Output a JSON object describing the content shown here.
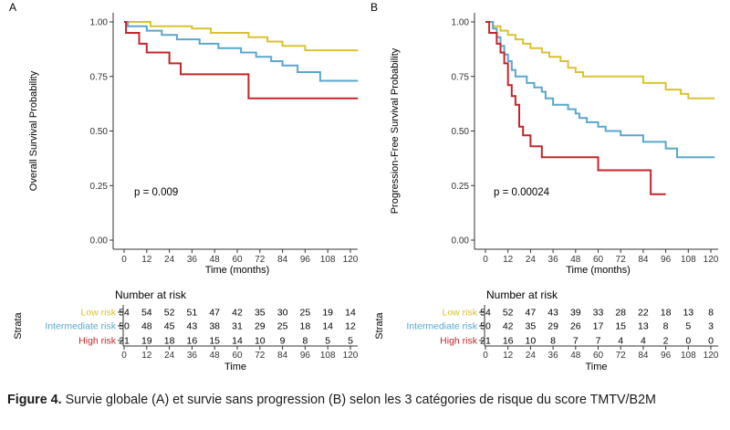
{
  "colors": {
    "low": "#d9c232",
    "intermediate": "#5aa7cc",
    "high": "#c4262b",
    "axis": "#333333",
    "grid": "#ebebeb"
  },
  "chart_data": [
    {
      "type": "line",
      "subtype": "kaplan-meier step",
      "panel_label": "A",
      "ylabel": "Overall Survival Probability",
      "xlabel": "Time (months)",
      "xlim": [
        0,
        120
      ],
      "ylim": [
        0,
        1
      ],
      "xticks": [
        0,
        12,
        24,
        36,
        48,
        60,
        72,
        84,
        96,
        108,
        120
      ],
      "yticks": [
        0,
        0.25,
        0.5,
        0.75,
        1
      ],
      "ytick_labels": [
        "0.00",
        "0.25",
        "0.50",
        "0.75",
        "1.00"
      ],
      "grid": false,
      "pvalue": "p = 0.009",
      "series": [
        {
          "name": "Low risk",
          "color_key": "low",
          "points": [
            [
              0,
              1
            ],
            [
              14,
              1
            ],
            [
              14,
              0.98
            ],
            [
              36,
              0.98
            ],
            [
              36,
              0.97
            ],
            [
              46,
              0.97
            ],
            [
              46,
              0.95
            ],
            [
              66,
              0.95
            ],
            [
              66,
              0.93
            ],
            [
              76,
              0.93
            ],
            [
              76,
              0.91
            ],
            [
              84,
              0.91
            ],
            [
              84,
              0.89
            ],
            [
              96,
              0.89
            ],
            [
              96,
              0.87
            ],
            [
              124,
              0.87
            ]
          ]
        },
        {
          "name": "Intermediate risk",
          "color_key": "intermediate",
          "points": [
            [
              0,
              1
            ],
            [
              2,
              1
            ],
            [
              2,
              0.98
            ],
            [
              12,
              0.98
            ],
            [
              12,
              0.96
            ],
            [
              20,
              0.96
            ],
            [
              20,
              0.94
            ],
            [
              28,
              0.94
            ],
            [
              28,
              0.92
            ],
            [
              40,
              0.92
            ],
            [
              40,
              0.9
            ],
            [
              50,
              0.9
            ],
            [
              50,
              0.88
            ],
            [
              62,
              0.88
            ],
            [
              62,
              0.86
            ],
            [
              70,
              0.86
            ],
            [
              70,
              0.84
            ],
            [
              78,
              0.84
            ],
            [
              78,
              0.82
            ],
            [
              84,
              0.82
            ],
            [
              84,
              0.8
            ],
            [
              92,
              0.8
            ],
            [
              92,
              0.77
            ],
            [
              104,
              0.77
            ],
            [
              104,
              0.73
            ],
            [
              124,
              0.73
            ]
          ]
        },
        {
          "name": "High risk",
          "color_key": "high",
          "points": [
            [
              0,
              1
            ],
            [
              1,
              1
            ],
            [
              1,
              0.95
            ],
            [
              8,
              0.95
            ],
            [
              8,
              0.9
            ],
            [
              12,
              0.9
            ],
            [
              12,
              0.86
            ],
            [
              24,
              0.86
            ],
            [
              24,
              0.81
            ],
            [
              30,
              0.81
            ],
            [
              30,
              0.76
            ],
            [
              66,
              0.76
            ],
            [
              66,
              0.65
            ],
            [
              124,
              0.65
            ]
          ]
        }
      ],
      "risk_table": {
        "title": "Number at risk",
        "strata_label": "Strata",
        "xlabel": "Time",
        "times": [
          0,
          12,
          24,
          36,
          48,
          60,
          72,
          84,
          96,
          108,
          120
        ],
        "rows": [
          {
            "name": "Low risk",
            "color_key": "low",
            "values": [
              "54",
              "54",
              "52",
              "51",
              "47",
              "42",
              "35",
              "30",
              "25",
              "19",
              "14"
            ]
          },
          {
            "name": "Intermediate risk",
            "color_key": "intermediate",
            "values": [
              "50",
              "48",
              "45",
              "43",
              "38",
              "31",
              "29",
              "25",
              "18",
              "14",
              "12"
            ]
          },
          {
            "name": "High risk",
            "color_key": "high",
            "values": [
              "21",
              "19",
              "18",
              "16",
              "15",
              "14",
              "10",
              "9",
              "8",
              "5",
              "5"
            ]
          }
        ]
      }
    },
    {
      "type": "line",
      "subtype": "kaplan-meier step",
      "panel_label": "B",
      "ylabel": "Progression-Free Survival Probability",
      "xlabel": "Time (months)",
      "xlim": [
        0,
        120
      ],
      "ylim": [
        0,
        1
      ],
      "xticks": [
        0,
        12,
        24,
        36,
        48,
        60,
        72,
        84,
        96,
        108,
        120
      ],
      "yticks": [
        0,
        0.25,
        0.5,
        0.75,
        1
      ],
      "ytick_labels": [
        "0.00",
        "0.25",
        "0.50",
        "0.75",
        "1.00"
      ],
      "grid": false,
      "pvalue": "p = 0.00024",
      "series": [
        {
          "name": "Low risk",
          "color_key": "low",
          "points": [
            [
              0,
              1
            ],
            [
              4,
              1
            ],
            [
              4,
              0.98
            ],
            [
              8,
              0.98
            ],
            [
              8,
              0.96
            ],
            [
              12,
              0.96
            ],
            [
              12,
              0.94
            ],
            [
              16,
              0.94
            ],
            [
              16,
              0.92
            ],
            [
              20,
              0.92
            ],
            [
              20,
              0.9
            ],
            [
              24,
              0.9
            ],
            [
              24,
              0.88
            ],
            [
              30,
              0.88
            ],
            [
              30,
              0.86
            ],
            [
              34,
              0.86
            ],
            [
              34,
              0.84
            ],
            [
              40,
              0.84
            ],
            [
              40,
              0.82
            ],
            [
              44,
              0.82
            ],
            [
              44,
              0.79
            ],
            [
              48,
              0.79
            ],
            [
              48,
              0.77
            ],
            [
              52,
              0.77
            ],
            [
              52,
              0.75
            ],
            [
              84,
              0.75
            ],
            [
              84,
              0.72
            ],
            [
              96,
              0.72
            ],
            [
              96,
              0.69
            ],
            [
              104,
              0.69
            ],
            [
              104,
              0.67
            ],
            [
              108,
              0.67
            ],
            [
              108,
              0.65
            ],
            [
              122,
              0.65
            ]
          ]
        },
        {
          "name": "Intermediate risk",
          "color_key": "intermediate",
          "points": [
            [
              0,
              1
            ],
            [
              4,
              1
            ],
            [
              4,
              0.97
            ],
            [
              6,
              0.97
            ],
            [
              6,
              0.93
            ],
            [
              8,
              0.93
            ],
            [
              8,
              0.89
            ],
            [
              10,
              0.89
            ],
            [
              10,
              0.85
            ],
            [
              12,
              0.85
            ],
            [
              12,
              0.82
            ],
            [
              14,
              0.82
            ],
            [
              14,
              0.78
            ],
            [
              16,
              0.78
            ],
            [
              16,
              0.75
            ],
            [
              22,
              0.75
            ],
            [
              22,
              0.72
            ],
            [
              26,
              0.72
            ],
            [
              26,
              0.7
            ],
            [
              30,
              0.7
            ],
            [
              30,
              0.68
            ],
            [
              32,
              0.68
            ],
            [
              32,
              0.65
            ],
            [
              36,
              0.65
            ],
            [
              36,
              0.62
            ],
            [
              44,
              0.62
            ],
            [
              44,
              0.6
            ],
            [
              48,
              0.6
            ],
            [
              48,
              0.58
            ],
            [
              50,
              0.58
            ],
            [
              50,
              0.56
            ],
            [
              54,
              0.56
            ],
            [
              54,
              0.54
            ],
            [
              60,
              0.54
            ],
            [
              60,
              0.52
            ],
            [
              64,
              0.52
            ],
            [
              64,
              0.5
            ],
            [
              72,
              0.5
            ],
            [
              72,
              0.48
            ],
            [
              84,
              0.48
            ],
            [
              84,
              0.45
            ],
            [
              96,
              0.45
            ],
            [
              96,
              0.42
            ],
            [
              102,
              0.42
            ],
            [
              102,
              0.38
            ],
            [
              122,
              0.38
            ]
          ]
        },
        {
          "name": "High risk",
          "color_key": "high",
          "points": [
            [
              0,
              1
            ],
            [
              2,
              1
            ],
            [
              2,
              0.95
            ],
            [
              6,
              0.95
            ],
            [
              6,
              0.9
            ],
            [
              8,
              0.9
            ],
            [
              8,
              0.86
            ],
            [
              10,
              0.86
            ],
            [
              10,
              0.81
            ],
            [
              12,
              0.81
            ],
            [
              12,
              0.71
            ],
            [
              14,
              0.71
            ],
            [
              14,
              0.66
            ],
            [
              16,
              0.66
            ],
            [
              16,
              0.62
            ],
            [
              18,
              0.62
            ],
            [
              18,
              0.52
            ],
            [
              20,
              0.52
            ],
            [
              20,
              0.48
            ],
            [
              24,
              0.48
            ],
            [
              24,
              0.43
            ],
            [
              30,
              0.43
            ],
            [
              30,
              0.38
            ],
            [
              36,
              0.38
            ],
            [
              36,
              0.38
            ],
            [
              60,
              0.38
            ],
            [
              60,
              0.32
            ],
            [
              88,
              0.32
            ],
            [
              88,
              0.21
            ],
            [
              96,
              0.21
            ]
          ]
        }
      ],
      "risk_table": {
        "title": "Number at risk",
        "strata_label": "Strata",
        "xlabel": "Time",
        "times": [
          0,
          12,
          24,
          36,
          48,
          60,
          72,
          84,
          96,
          108,
          120
        ],
        "rows": [
          {
            "name": "Low risk",
            "color_key": "low",
            "values": [
              "54",
              "52",
              "47",
              "43",
              "39",
              "33",
              "28",
              "22",
              "18",
              "13",
              "8"
            ]
          },
          {
            "name": "Intermediate risk",
            "color_key": "intermediate",
            "values": [
              "50",
              "42",
              "35",
              "29",
              "26",
              "17",
              "15",
              "13",
              "8",
              "5",
              "3"
            ]
          },
          {
            "name": "High risk",
            "color_key": "high",
            "values": [
              "21",
              "16",
              "10",
              "8",
              "7",
              "7",
              "4",
              "4",
              "2",
              "0",
              "0"
            ]
          }
        ]
      }
    }
  ],
  "caption": {
    "label": "Figure 4.",
    "text": " Survie globale (A) et survie sans progression (B) selon les 3 catégories de risque du score TMTV/B2M"
  }
}
